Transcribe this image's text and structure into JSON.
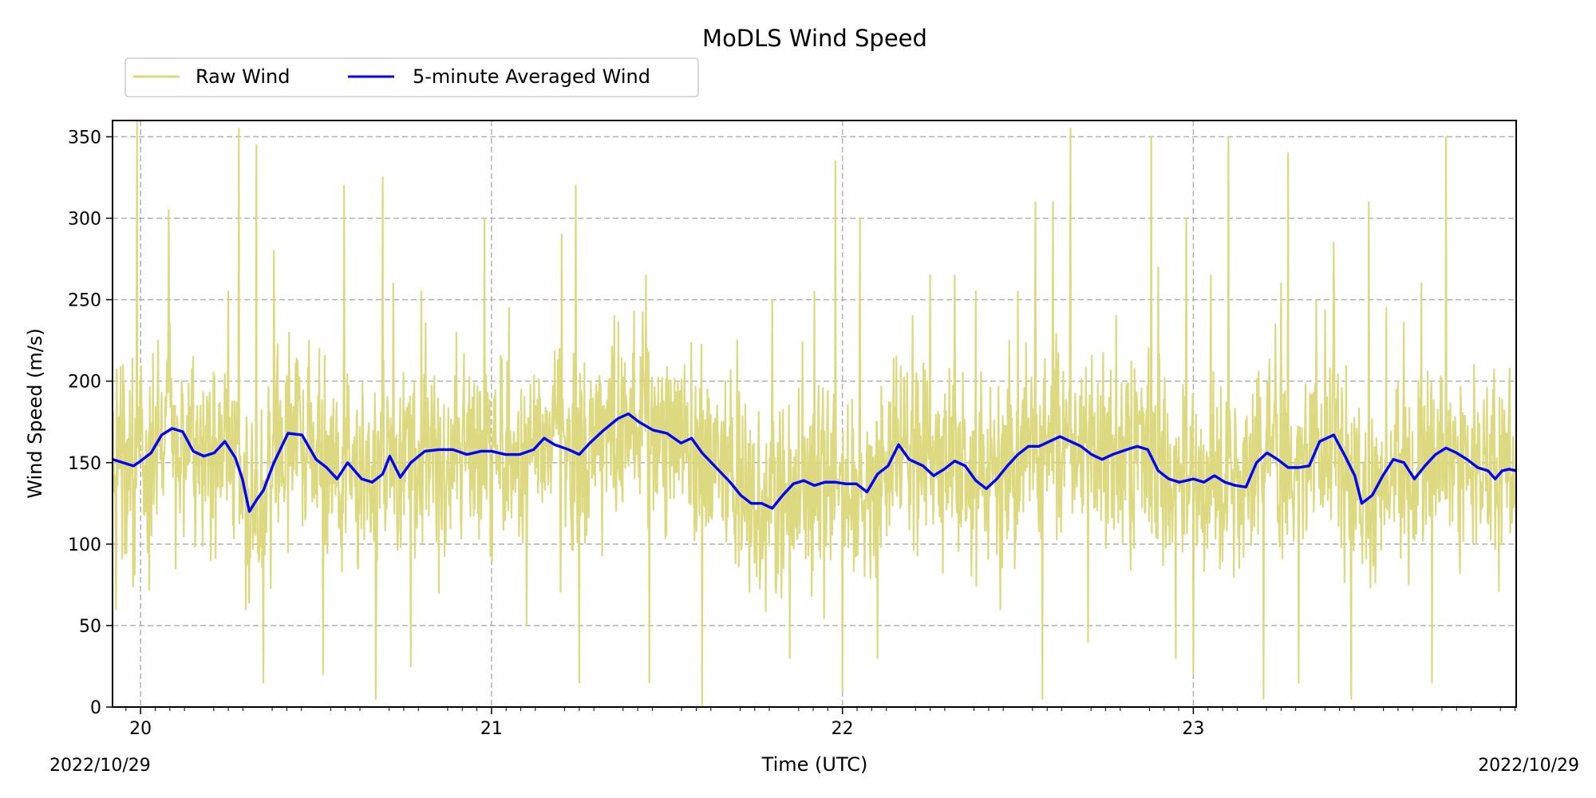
{
  "chart_data": {
    "type": "line",
    "title": "MoDLS Wind Speed",
    "xlabel": "Time (UTC)",
    "ylabel": "Wind Speed (m/s)",
    "date_left": "2022/10/29",
    "date_right": "2022/10/29",
    "xlim": [
      19.92,
      23.92
    ],
    "ylim": [
      0,
      360
    ],
    "x_ticks": [
      20,
      21,
      22,
      23
    ],
    "x_tick_labels": [
      "20",
      "21",
      "22",
      "23"
    ],
    "y_ticks": [
      0,
      50,
      100,
      150,
      200,
      250,
      300,
      350
    ],
    "y_tick_labels": [
      "0",
      "50",
      "100",
      "150",
      "200",
      "250",
      "300",
      "350"
    ],
    "grid": true,
    "legend_position": "top-left, above plot",
    "series": [
      {
        "name": "Raw Wind",
        "color": "#dbd77a",
        "description_points": [
          [
            19.92,
            150
          ],
          [
            19.93,
            60
          ],
          [
            19.95,
            210
          ],
          [
            19.99,
            360
          ],
          [
            20.02,
            95
          ],
          [
            20.05,
            225
          ],
          [
            20.08,
            305
          ],
          [
            20.1,
            85
          ],
          [
            20.15,
            215
          ],
          [
            20.2,
            90
          ],
          [
            20.25,
            255
          ],
          [
            20.28,
            355
          ],
          [
            20.3,
            60
          ],
          [
            20.33,
            345
          ],
          [
            20.35,
            15
          ],
          [
            20.38,
            280
          ],
          [
            20.42,
            95
          ],
          [
            20.48,
            225
          ],
          [
            20.52,
            20
          ],
          [
            20.58,
            320
          ],
          [
            20.62,
            85
          ],
          [
            20.67,
            5
          ],
          [
            20.69,
            325
          ],
          [
            20.72,
            260
          ],
          [
            20.77,
            25
          ],
          [
            20.8,
            255
          ],
          [
            20.85,
            70
          ],
          [
            20.9,
            230
          ],
          [
            20.98,
            300
          ],
          [
            21.05,
            245
          ],
          [
            21.1,
            50
          ],
          [
            21.2,
            290
          ],
          [
            21.24,
            320
          ],
          [
            21.25,
            15
          ],
          [
            21.35,
            240
          ],
          [
            21.44,
            265
          ],
          [
            21.45,
            15
          ],
          [
            21.55,
            210
          ],
          [
            21.6,
            0
          ],
          [
            21.7,
            225
          ],
          [
            21.8,
            250
          ],
          [
            21.85,
            30
          ],
          [
            21.92,
            255
          ],
          [
            21.98,
            335
          ],
          [
            22.0,
            10
          ],
          [
            22.05,
            300
          ],
          [
            22.1,
            30
          ],
          [
            22.2,
            240
          ],
          [
            22.25,
            265
          ],
          [
            22.32,
            265
          ],
          [
            22.38,
            255
          ],
          [
            22.45,
            60
          ],
          [
            22.5,
            255
          ],
          [
            22.55,
            310
          ],
          [
            22.57,
            5
          ],
          [
            22.6,
            310
          ],
          [
            22.65,
            355
          ],
          [
            22.7,
            40
          ],
          [
            22.78,
            240
          ],
          [
            22.88,
            350
          ],
          [
            22.9,
            270
          ],
          [
            22.95,
            30
          ],
          [
            22.98,
            300
          ],
          [
            23.0,
            20
          ],
          [
            23.05,
            265
          ],
          [
            23.1,
            350
          ],
          [
            23.2,
            5
          ],
          [
            23.25,
            260
          ],
          [
            23.27,
            340
          ],
          [
            23.3,
            15
          ],
          [
            23.35,
            250
          ],
          [
            23.4,
            285
          ],
          [
            23.45,
            5
          ],
          [
            23.5,
            310
          ],
          [
            23.55,
            245
          ],
          [
            23.65,
            260
          ],
          [
            23.68,
            15
          ],
          [
            23.72,
            350
          ],
          [
            23.8,
            210
          ],
          [
            23.9,
            195
          ],
          [
            23.92,
            85
          ]
        ]
      },
      {
        "name": "5-minute Averaged Wind",
        "color": "#0000ff",
        "points": [
          [
            19.92,
            152
          ],
          [
            19.95,
            150
          ],
          [
            19.98,
            148
          ],
          [
            20.0,
            151
          ],
          [
            20.03,
            156
          ],
          [
            20.06,
            167
          ],
          [
            20.09,
            171
          ],
          [
            20.12,
            169
          ],
          [
            20.15,
            157
          ],
          [
            20.18,
            154
          ],
          [
            20.21,
            156
          ],
          [
            20.24,
            163
          ],
          [
            20.27,
            153
          ],
          [
            20.29,
            140
          ],
          [
            20.31,
            120
          ],
          [
            20.33,
            127
          ],
          [
            20.35,
            133
          ],
          [
            20.38,
            150
          ],
          [
            20.42,
            168
          ],
          [
            20.46,
            167
          ],
          [
            20.5,
            152
          ],
          [
            20.53,
            147
          ],
          [
            20.56,
            140
          ],
          [
            20.59,
            150
          ],
          [
            20.63,
            140
          ],
          [
            20.66,
            138
          ],
          [
            20.69,
            143
          ],
          [
            20.71,
            154
          ],
          [
            20.74,
            141
          ],
          [
            20.77,
            150
          ],
          [
            20.81,
            157
          ],
          [
            20.85,
            158
          ],
          [
            20.89,
            158
          ],
          [
            20.93,
            155
          ],
          [
            20.97,
            157
          ],
          [
            21.0,
            157
          ],
          [
            21.04,
            155
          ],
          [
            21.08,
            155
          ],
          [
            21.12,
            158
          ],
          [
            21.15,
            165
          ],
          [
            21.18,
            161
          ],
          [
            21.22,
            158
          ],
          [
            21.25,
            155
          ],
          [
            21.28,
            162
          ],
          [
            21.32,
            170
          ],
          [
            21.36,
            177
          ],
          [
            21.39,
            180
          ],
          [
            21.42,
            175
          ],
          [
            21.46,
            170
          ],
          [
            21.5,
            168
          ],
          [
            21.54,
            162
          ],
          [
            21.57,
            165
          ],
          [
            21.6,
            156
          ],
          [
            21.64,
            147
          ],
          [
            21.68,
            138
          ],
          [
            21.71,
            130
          ],
          [
            21.74,
            125
          ],
          [
            21.77,
            125
          ],
          [
            21.8,
            122
          ],
          [
            21.83,
            130
          ],
          [
            21.86,
            137
          ],
          [
            21.89,
            139
          ],
          [
            21.92,
            136
          ],
          [
            21.95,
            138
          ],
          [
            21.98,
            138
          ],
          [
            22.01,
            137
          ],
          [
            22.04,
            137
          ],
          [
            22.07,
            132
          ],
          [
            22.1,
            143
          ],
          [
            22.13,
            148
          ],
          [
            22.16,
            161
          ],
          [
            22.19,
            152
          ],
          [
            22.23,
            148
          ],
          [
            22.26,
            142
          ],
          [
            22.29,
            146
          ],
          [
            22.32,
            151
          ],
          [
            22.35,
            148
          ],
          [
            22.38,
            139
          ],
          [
            22.41,
            134
          ],
          [
            22.44,
            140
          ],
          [
            22.47,
            148
          ],
          [
            22.5,
            155
          ],
          [
            22.53,
            160
          ],
          [
            22.56,
            160
          ],
          [
            22.59,
            163
          ],
          [
            22.62,
            166
          ],
          [
            22.65,
            163
          ],
          [
            22.68,
            160
          ],
          [
            22.71,
            155
          ],
          [
            22.74,
            152
          ],
          [
            22.77,
            155
          ],
          [
            22.81,
            158
          ],
          [
            22.84,
            160
          ],
          [
            22.87,
            158
          ],
          [
            22.9,
            145
          ],
          [
            22.93,
            140
          ],
          [
            22.96,
            138
          ],
          [
            23.0,
            140
          ],
          [
            23.03,
            138
          ],
          [
            23.06,
            142
          ],
          [
            23.09,
            138
          ],
          [
            23.12,
            136
          ],
          [
            23.15,
            135
          ],
          [
            23.18,
            150
          ],
          [
            23.21,
            156
          ],
          [
            23.24,
            152
          ],
          [
            23.27,
            147
          ],
          [
            23.3,
            147
          ],
          [
            23.33,
            148
          ],
          [
            23.36,
            163
          ],
          [
            23.4,
            167
          ],
          [
            23.43,
            155
          ],
          [
            23.46,
            142
          ],
          [
            23.48,
            125
          ],
          [
            23.51,
            130
          ],
          [
            23.54,
            142
          ],
          [
            23.57,
            152
          ],
          [
            23.6,
            150
          ],
          [
            23.63,
            140
          ],
          [
            23.66,
            148
          ],
          [
            23.69,
            155
          ],
          [
            23.72,
            159
          ],
          [
            23.75,
            156
          ],
          [
            23.78,
            152
          ],
          [
            23.81,
            147
          ],
          [
            23.84,
            145
          ],
          [
            23.86,
            140
          ],
          [
            23.88,
            145
          ],
          [
            23.9,
            146
          ],
          [
            23.92,
            145
          ]
        ]
      }
    ]
  },
  "colors": {
    "raw": "#dbd77a",
    "averaged": "#0000ff",
    "grid": "#b0b0b0"
  }
}
